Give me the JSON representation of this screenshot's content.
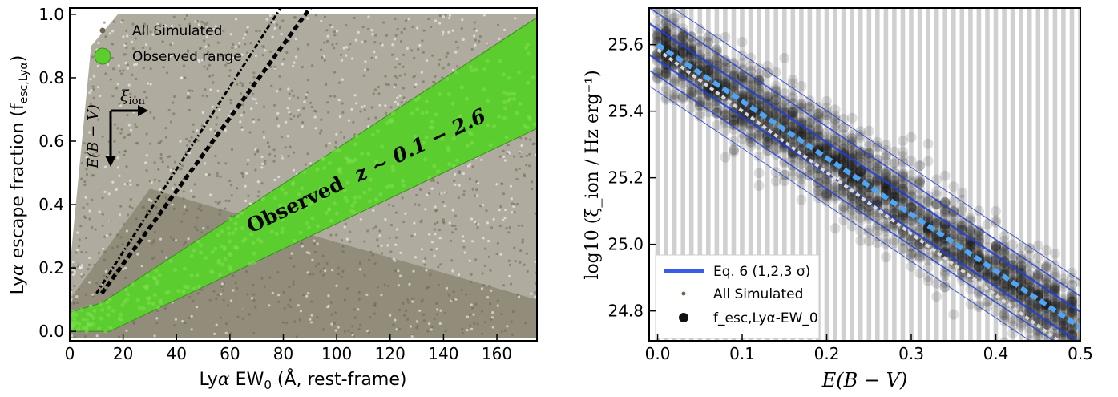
{
  "colors": {
    "simulated": "#6e6750",
    "observed": "#5ccd2f",
    "observed_edge": "#3c8c1e",
    "eq6": "#1f3fd6",
    "fit_light": "#4ea5f5",
    "fit_white": "#d9d9d9"
  },
  "chart_data": [
    {
      "type": "scatter",
      "xlabel": "Lyα EW₀ (Å, rest-frame)",
      "ylabel": "Lyα escape fraction (f_esc,Lyα)",
      "xlabel_parts": {
        "pre": "Ly",
        "greek": "α",
        "mid": " EW",
        "sub": "0",
        "post": " (Å, rest-frame)"
      },
      "ylabel_parts": {
        "pre": "Ly",
        "greek": "α",
        "mid": " escape fraction (f",
        "sub": "esc,Lyα",
        "post": ")"
      },
      "xlim": [
        0,
        175
      ],
      "ylim": [
        -0.03,
        1.02
      ],
      "xticks": [
        0,
        20,
        40,
        60,
        80,
        100,
        120,
        140,
        160
      ],
      "yticks": [
        0.0,
        0.2,
        0.4,
        0.6,
        0.8,
        1.0
      ],
      "legend": {
        "position": "top-left",
        "entries": [
          "All Simulated",
          "Observed range"
        ]
      },
      "annotation": {
        "text_bold": "Observed",
        "text_math": "z ~ 0.1 − 2.6",
        "arrow_right_label": "ξ_ion",
        "arrow_down_label": "E(B − V)"
      },
      "series": [
        {
          "name": "All Simulated",
          "kind": "point-cloud",
          "outline": [
            [
              0,
              0.0
            ],
            [
              0,
              0.2
            ],
            [
              8,
              0.9
            ],
            [
              18,
              1.0
            ],
            [
              175,
              1.0
            ],
            [
              175,
              -0.02
            ],
            [
              0,
              -0.02
            ]
          ]
        },
        {
          "name": "Observed range",
          "kind": "band",
          "lower": [
            [
              0,
              0.0
            ],
            [
              15,
              0.0
            ],
            [
              175,
              0.64
            ]
          ],
          "upper": [
            [
              0,
              0.06
            ],
            [
              12,
              0.09
            ],
            [
              175,
              0.99
            ]
          ]
        },
        {
          "name": "dash-dot line",
          "kind": "line",
          "points": [
            [
              10,
              0.12
            ],
            [
              79,
              1.02
            ]
          ]
        },
        {
          "name": "dashed line",
          "kind": "line",
          "points": [
            [
              12,
              0.12
            ],
            [
              90,
              1.02
            ]
          ]
        }
      ]
    },
    {
      "type": "scatter",
      "xlabel": "E(B − V)",
      "ylabel": "log10 (ξ_ion / Hz erg⁻¹)",
      "xlim": [
        -0.01,
        0.5
      ],
      "ylim": [
        24.71,
        25.71
      ],
      "xticks": [
        0.0,
        0.1,
        0.2,
        0.3,
        0.4,
        0.5
      ],
      "yticks": [
        24.8,
        25.0,
        25.2,
        25.4,
        25.6
      ],
      "legend": {
        "position": "bottom-left",
        "entries": [
          "Eq. 6 (1,2,3 σ)",
          "All Simulated",
          "f_esc,Lyα-EW_0"
        ]
      },
      "relation": {
        "x": [
          0.0,
          0.5
        ],
        "y": [
          25.6,
          24.75
        ]
      },
      "sigma_offsets": [
        0.047,
        0.094,
        0.141
      ],
      "series": [
        {
          "name": "Eq. 6 (1,2,3 σ)",
          "kind": "lines"
        },
        {
          "name": "All Simulated",
          "kind": "vertical-point-columns",
          "x_step": 0.01
        },
        {
          "name": "f_esc,Lyα-EW_0",
          "kind": "point-cloud-around-relation"
        }
      ]
    }
  ]
}
